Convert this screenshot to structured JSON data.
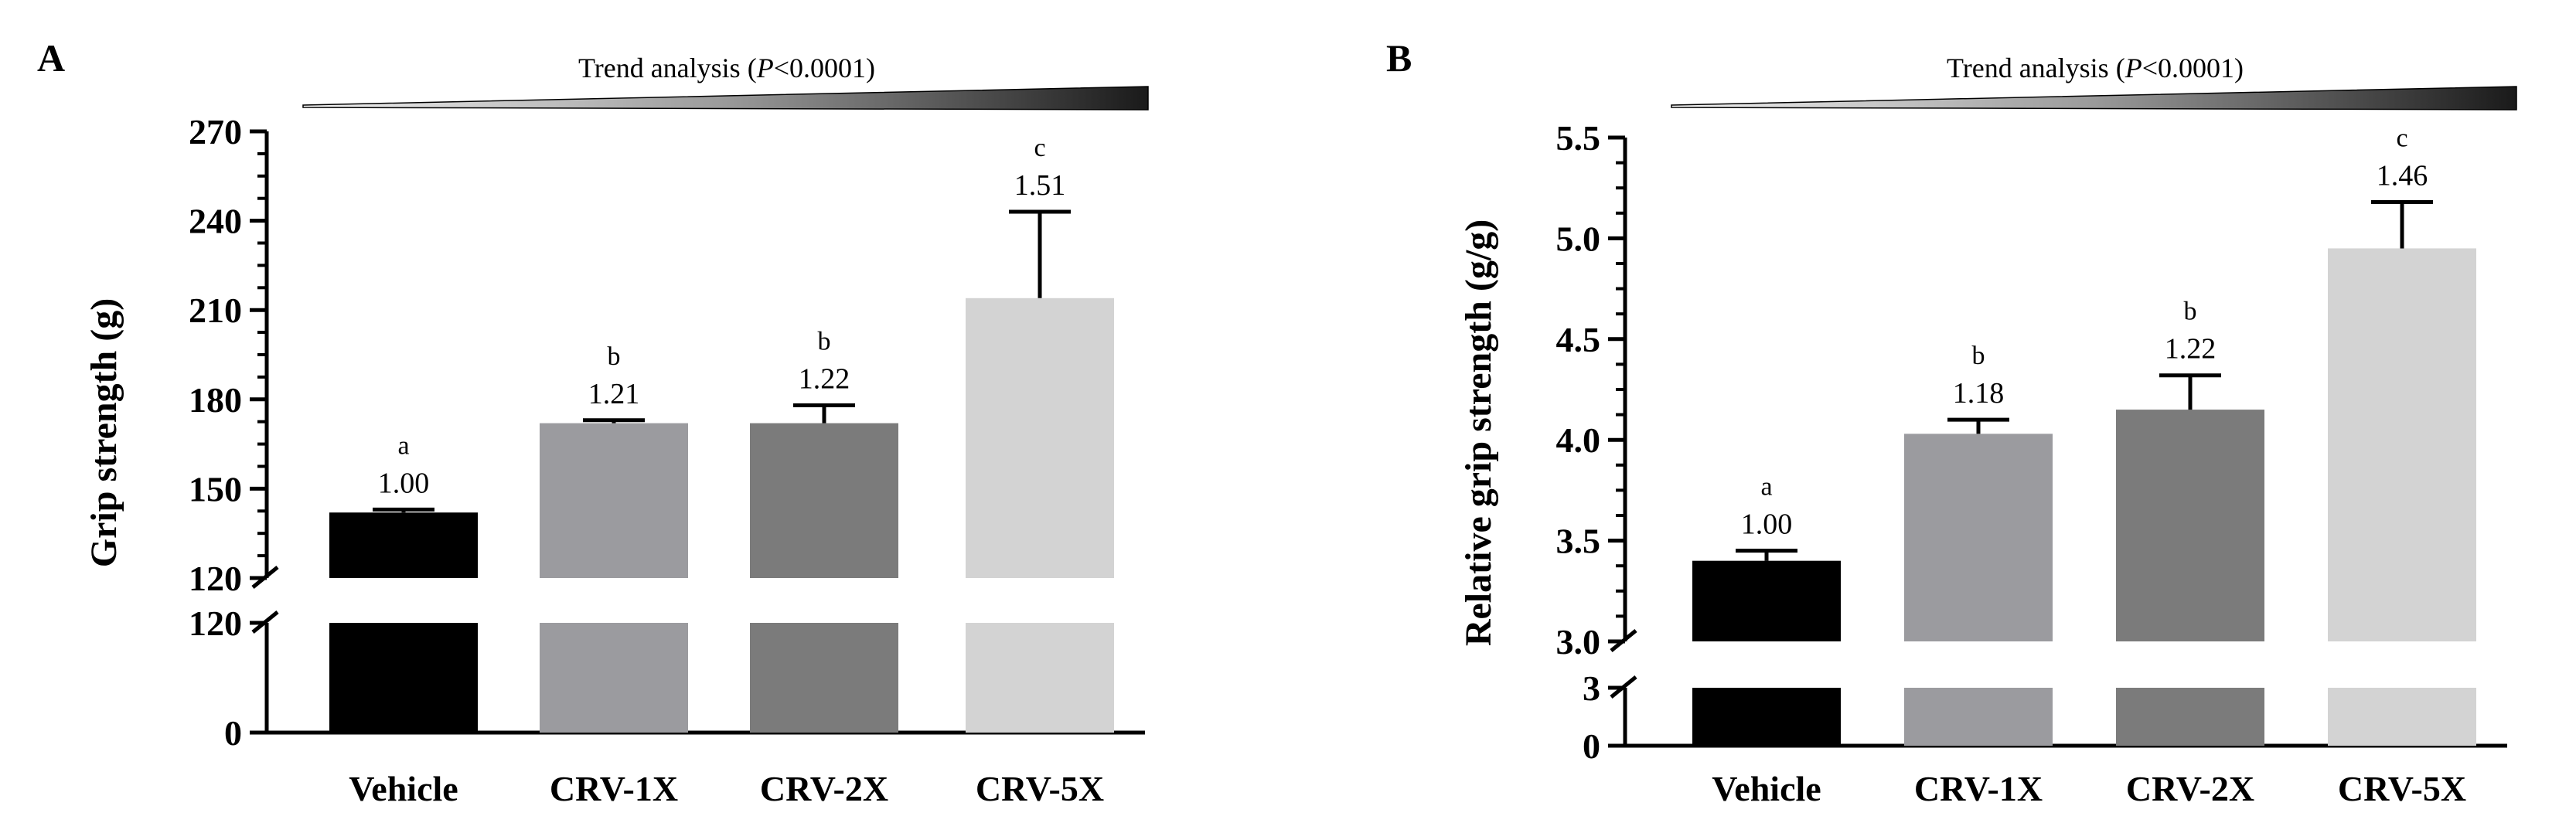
{
  "chart_data": [
    {
      "panel": "A",
      "type": "bar",
      "trend_label_prefix": "Trend analysis (",
      "trend_label_p": "P",
      "trend_label_suffix": "<0.0001)",
      "ylabel": "Grip strength (g)",
      "categories": [
        "Vehicle",
        "CRV-1X",
        "CRV-2X",
        "CRV-5X"
      ],
      "values": [
        142,
        172,
        172,
        214
      ],
      "errors": [
        1,
        1,
        6,
        29
      ],
      "significance": [
        "a",
        "b",
        "b",
        "c"
      ],
      "fold_change": [
        "1.00",
        "1.21",
        "1.22",
        "1.51"
      ],
      "colors": [
        "#000000",
        "#9b9b9f",
        "#7b7b7b",
        "#d3d3d3"
      ],
      "axis_break": true,
      "ylim_upper": [
        120,
        270
      ],
      "yticks_upper": [
        120,
        150,
        180,
        210,
        240,
        270
      ],
      "ytick_labels_upper": [
        "120",
        "150",
        "180",
        "210",
        "240",
        "270"
      ],
      "ylim_lower": [
        0,
        120
      ],
      "yticks_lower": [
        0,
        120
      ],
      "ytick_labels_lower": [
        "0",
        "120"
      ]
    },
    {
      "panel": "B",
      "type": "bar",
      "trend_label_prefix": "Trend analysis (",
      "trend_label_p": "P",
      "trend_label_suffix": "<0.0001)",
      "ylabel": "Relative grip strength (g/g)",
      "categories": [
        "Vehicle",
        "CRV-1X",
        "CRV-2X",
        "CRV-5X"
      ],
      "values": [
        3.4,
        4.03,
        4.15,
        4.95
      ],
      "errors": [
        0.05,
        0.07,
        0.17,
        0.23
      ],
      "significance": [
        "a",
        "b",
        "b",
        "c"
      ],
      "fold_change": [
        "1.00",
        "1.18",
        "1.22",
        "1.46"
      ],
      "colors": [
        "#000000",
        "#9b9b9f",
        "#7b7b7b",
        "#d3d3d3"
      ],
      "axis_break": true,
      "ylim_upper": [
        3.0,
        5.5
      ],
      "yticks_upper": [
        3.0,
        3.5,
        4.0,
        4.5,
        5.0,
        5.5
      ],
      "ytick_labels_upper": [
        "3.0",
        "3.5",
        "4.0",
        "4.5",
        "5.0",
        "5.5"
      ],
      "ylim_lower": [
        0,
        3
      ],
      "yticks_lower": [
        0,
        3
      ],
      "ytick_labels_lower": [
        "0",
        "3"
      ]
    }
  ]
}
